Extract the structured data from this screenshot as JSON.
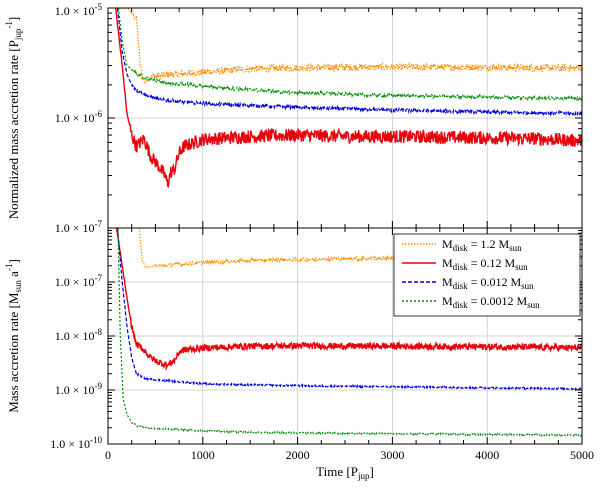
{
  "chart_data": [
    {
      "type": "line",
      "panel": "top",
      "ylabel_main": "Normalized mass accretion rate [P",
      "ylabel_sub": "jup",
      "ylabel_sup": "-1",
      "ylabel_end": "]",
      "xlim": [
        0,
        5000
      ],
      "ylim": [
        1e-07,
        1e-05
      ],
      "yscale": "log",
      "grid": true,
      "yticks": [
        {
          "value": 1e-07,
          "mant": "1.0 × 10",
          "exp": "-7"
        },
        {
          "value": 1e-06,
          "mant": "1.0 × 10",
          "exp": "-6"
        },
        {
          "value": 1e-05,
          "mant": "1.0 × 10",
          "exp": "-5"
        }
      ],
      "series": [
        {
          "key": "m12",
          "x": [
            120,
            200,
            300,
            340,
            380,
            420,
            500,
            700,
            1000,
            1500,
            2000,
            2500,
            3000,
            3500,
            4000,
            4500,
            5000
          ],
          "y": [
            1e-05,
            1e-05,
            8e-06,
            3e-06,
            2.1e-06,
            2.3e-06,
            2.4e-06,
            2.5e-06,
            2.6e-06,
            2.8e-06,
            2.85e-06,
            2.9e-06,
            2.9e-06,
            2.9e-06,
            2.9e-06,
            2.85e-06,
            2.85e-06
          ],
          "noise": 0.03
        },
        {
          "key": "m012",
          "x": [
            80,
            150,
            200,
            250,
            300,
            380,
            450,
            500,
            550,
            600,
            630,
            660,
            700,
            750,
            800,
            1000,
            1500,
            2000,
            2500,
            3000,
            3500,
            4000,
            4500,
            5000
          ],
          "y": [
            1e-05,
            3e-06,
            1.1e-06,
            7e-07,
            5.5e-07,
            6.5e-07,
            4.5e-07,
            4e-07,
            3.5e-07,
            3e-07,
            2.5e-07,
            3.2e-07,
            3.4e-07,
            4.8e-07,
            5.5e-07,
            6.4e-07,
            6.8e-07,
            7e-07,
            6.8e-07,
            6.8e-07,
            6.7e-07,
            6.6e-07,
            6.5e-07,
            6.2e-07
          ],
          "noise": 0.06
        },
        {
          "key": "m0012",
          "x": [
            100,
            150,
            200,
            250,
            300,
            400,
            600,
            1000,
            1500,
            2000,
            3000,
            4000,
            5000
          ],
          "y": [
            1e-05,
            4e-06,
            2.5e-06,
            2e-06,
            1.8e-06,
            1.6e-06,
            1.45e-06,
            1.35e-06,
            1.3e-06,
            1.25e-06,
            1.18e-06,
            1.13e-06,
            1.1e-06
          ],
          "noise": 0.015
        },
        {
          "key": "m00012",
          "x": [
            110,
            150,
            200,
            300,
            400,
            600,
            1000,
            1500,
            2000,
            3000,
            4000,
            5000
          ],
          "y": [
            1e-05,
            5e-06,
            3e-06,
            2.5e-06,
            2.3e-06,
            2.1e-06,
            1.95e-06,
            1.8e-06,
            1.7e-06,
            1.6e-06,
            1.55e-06,
            1.5e-06
          ],
          "noise": 0.015
        }
      ]
    },
    {
      "type": "line",
      "panel": "bottom",
      "ylabel_main": "Mass accretion rate [M",
      "ylabel_sub": "sun",
      "ylabel_mid": " a",
      "ylabel_sup": "-1",
      "ylabel_end": "]",
      "xlabel_main": "Time [P",
      "xlabel_sub": "jup",
      "xlabel_end": "]",
      "xlim": [
        0,
        5000
      ],
      "ylim": [
        1e-10,
        1e-06
      ],
      "yscale": "log",
      "grid": true,
      "xticks": [
        "0",
        "1000",
        "2000",
        "3000",
        "4000",
        "5000"
      ],
      "yticks": [
        {
          "value": 1e-10,
          "mant": "1.0 × 10",
          "exp": "-10"
        },
        {
          "value": 1e-09,
          "mant": "1.0 × 10",
          "exp": "-9"
        },
        {
          "value": 1e-08,
          "mant": "1.0 × 10",
          "exp": "-8"
        },
        {
          "value": 1e-07,
          "mant": "1.0 × 10",
          "exp": "-7"
        }
      ],
      "legend_position": "top-right",
      "series": [
        {
          "key": "m12",
          "x": [
            330,
            360,
            400,
            500,
            700,
            1000,
            1500,
            2000,
            2500,
            3000,
            3500,
            4000,
            4500,
            5000
          ],
          "y": [
            1e-06,
            2.5e-07,
            1.85e-07,
            2e-07,
            2.1e-07,
            2.3e-07,
            2.5e-07,
            2.6e-07,
            2.7e-07,
            2.75e-07,
            2.8e-07,
            2.8e-07,
            2.75e-07,
            2.7e-07
          ],
          "noise": 0.03
        },
        {
          "key": "m012",
          "x": [
            90,
            150,
            200,
            250,
            300,
            380,
            450,
            500,
            550,
            600,
            630,
            660,
            700,
            750,
            800,
            1000,
            1500,
            2000,
            2500,
            3000,
            3500,
            4000,
            4500,
            5000
          ],
          "y": [
            1e-06,
            2e-07,
            5e-08,
            1.5e-08,
            7e-09,
            5.5e-09,
            4e-09,
            3.5e-09,
            3.2e-09,
            3e-09,
            2.8e-09,
            3.2e-09,
            3.5e-09,
            5e-09,
            5.5e-09,
            6e-09,
            6.5e-09,
            6.6e-09,
            6.5e-09,
            6.5e-09,
            6.4e-09,
            6.3e-09,
            6.2e-09,
            6e-09
          ],
          "noise": 0.06
        },
        {
          "key": "m0012",
          "x": [
            100,
            150,
            200,
            250,
            300,
            400,
            600,
            1000,
            1500,
            2000,
            3000,
            4000,
            5000
          ],
          "y": [
            1e-06,
            1e-07,
            1.5e-08,
            4e-09,
            2e-09,
            1.6e-09,
            1.5e-09,
            1.3e-09,
            1.25e-09,
            1.2e-09,
            1.15e-09,
            1.1e-09,
            1.05e-09
          ],
          "noise": 0.015
        },
        {
          "key": "m00012",
          "x": [
            105,
            130,
            160,
            200,
            250,
            300,
            400,
            600,
            1000,
            1500,
            2000,
            3000,
            4000,
            5000
          ],
          "y": [
            1e-06,
            1e-08,
            7e-10,
            3.5e-10,
            2.5e-10,
            2.2e-10,
            2e-10,
            1.9e-10,
            1.75e-10,
            1.65e-10,
            1.6e-10,
            1.55e-10,
            1.5e-10,
            1.45e-10
          ],
          "noise": 0.015
        }
      ]
    }
  ],
  "legend": [
    {
      "key": "m12",
      "label_pre": "M",
      "label_sub": "disk",
      "label_val": " = 1.2 M",
      "label_unit": "sun",
      "color": "#ff8c00",
      "dash": "1.5,1.5"
    },
    {
      "key": "m012",
      "label_pre": "M",
      "label_sub": "disk",
      "label_val": " = 0.12 M",
      "label_unit": "sun",
      "color": "#e8000b",
      "dash": ""
    },
    {
      "key": "m0012",
      "label_pre": "M",
      "label_sub": "disk",
      "label_val": " = 0.012 M",
      "label_unit": "sun",
      "color": "#0000d8",
      "dash": "4,2"
    },
    {
      "key": "m00012",
      "label_pre": "M",
      "label_sub": "disk",
      "label_val": " = 0.0012 M",
      "label_unit": "sun",
      "color": "#008c00",
      "dash": "2,2"
    }
  ]
}
